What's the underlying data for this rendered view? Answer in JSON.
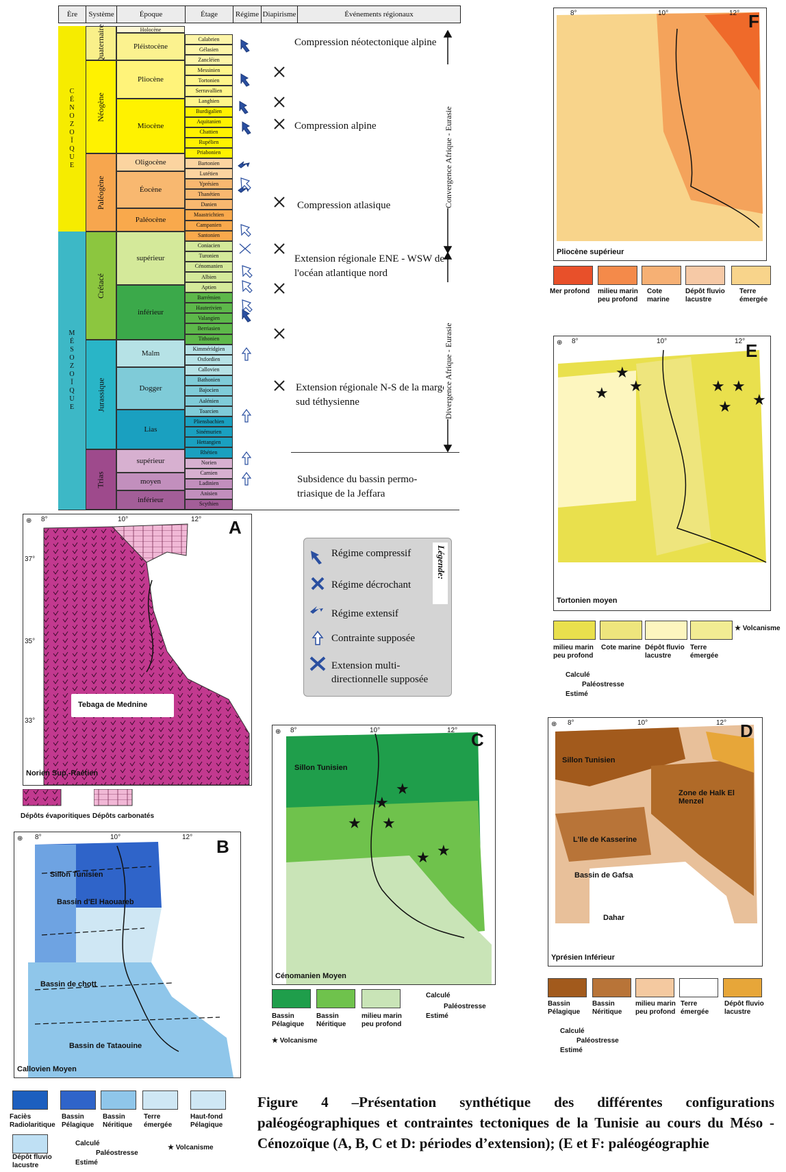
{
  "chart": {
    "headers": [
      "Ère",
      "Système",
      "Époque",
      "Étage",
      "Régime",
      "Diapirisme",
      "Événements régionaux"
    ],
    "eras": {
      "cenozoic": "CÉNOZOÏQUE",
      "mesozoic": "MÉSOZOÏQUE"
    },
    "systems": [
      "Quaternaire",
      "Néogène",
      "Paléogène",
      "Crétacé",
      "Jurassique",
      "Trias"
    ],
    "epochs": [
      "Holocène",
      "Pléistocène",
      "Pliocène",
      "Miocène",
      "Oligocène",
      "Éocène",
      "Paléocène",
      "supérieur",
      "inférieur",
      "Malm",
      "Dogger",
      "Lias",
      "supérieur",
      "moyen",
      "inférieur"
    ],
    "stages": [
      "Calabrien",
      "Gélasien",
      "Zancléien",
      "Messinien",
      "Tortonien",
      "Serravallien",
      "Langhien",
      "Burdigalien",
      "Aquitanien",
      "Chattien",
      "Rupélien",
      "Priabonien",
      "Bartonien",
      "Lutétien",
      "Yprésien",
      "Thanétien",
      "Danien",
      "Maastrichtien",
      "Campanien",
      "Santonien",
      "Coniacien",
      "Turonien",
      "Cénomanien",
      "Albien",
      "Aptien",
      "Barrémien",
      "Hauterivien",
      "Valangien",
      "Berriasien",
      "Tithonien",
      "Kimméridgien",
      "Oxfordien",
      "Callovien",
      "Bathonien",
      "Bajocien",
      "Aalénien",
      "Toarcien",
      "Pliensbachien",
      "Sinémurien",
      "Hettangien",
      "Rhétien",
      "Norien",
      "Carnien",
      "Ladinien",
      "Anisien",
      "Scythien"
    ],
    "events": [
      "Compression néotectonique alpine",
      "Compression alpine",
      "Compression atlasique",
      "Extension régionale ENE - WSW de l'océan atlantique nord",
      "Extension régionale N-S de la marge sud téthysienne",
      "Subsidence du bassin permo-triasique de la Jeffara"
    ],
    "convergence": "Convergence Afrique - Eurasie",
    "divergence": "Divergence Afrique - Eurasie"
  },
  "legend": {
    "title": "Légende:",
    "items": [
      "Régime compressif",
      "Régime décrochant",
      "Régime extensif",
      "Contrainte supposée",
      "Extension multi-directionnelle supposée"
    ]
  },
  "maps": {
    "A": {
      "letter": "A",
      "period": "Norien Sup.-Raétien",
      "place": "Tebaga de Mednine",
      "legend": [
        "Dépôts évaporitiques",
        "Dépôts carbonatés"
      ]
    },
    "B": {
      "letter": "B",
      "period": "Callovien Moyen",
      "places": [
        "Sillon Tunisien",
        "Bassin d'El Haouareb",
        "Bassin de chott",
        "Bassin de Tataouine"
      ],
      "legend": [
        "Faciès Radiolaritique",
        "Bassin Pélagique",
        "Bassin Néritique",
        "Terre émergée",
        "Haut-fond Pélagique",
        "Dépôt fluvio lacustre"
      ]
    },
    "C": {
      "letter": "C",
      "period": "Cénomanien Moyen",
      "places": [
        "Sillon Tunisien"
      ],
      "legend": [
        "Bassin Pélagique",
        "Bassin Néritique",
        "milieu marin peu profond"
      ]
    },
    "D": {
      "letter": "D",
      "period": "Yprésien Inférieur",
      "places": [
        "Sillon Tunisien",
        "Zone de Halk El Menzel",
        "L'Ile de Kasserine",
        "Bassin de Gafsa",
        "Dahar"
      ],
      "legend": [
        "Bassin Pélagique",
        "Bassin Néritique",
        "milieu marin peu profond",
        "Terre émergée",
        "Dépôt fluvio lacustre"
      ]
    },
    "E": {
      "letter": "E",
      "period": "Tortonien moyen",
      "legend": [
        "milieu marin peu profond",
        "Cote marine",
        "Dépôt fluvio lacustre",
        "Terre émergée"
      ],
      "volcanism": "Volcanisme"
    },
    "F": {
      "letter": "F",
      "period": "Pliocène supérieur",
      "legend": [
        "Mer profond",
        "milieu marin peu profond",
        "Cote marine",
        "Dépôt fluvio lacustre",
        "Terre émergée"
      ]
    }
  },
  "paleostress": {
    "computed": "Calculé",
    "label": "Paléostresse",
    "estimated": "Estimé",
    "volcanism": "Volcanisme"
  },
  "grid": {
    "lon": [
      "8°",
      "10°",
      "12°"
    ],
    "lat": [
      "37°",
      "35°",
      "33°"
    ]
  },
  "colors": {
    "neogene": "#fff200",
    "paleogene": "#f7a64e",
    "cretaceous": "#8cc63f",
    "jurassic": "#29b5c7",
    "trias": "#9e4a8c"
  },
  "caption": "Figure 4 –Présentation synthétique des différentes configurations paléogéographiques et contraintes tectoniques de la Tunisie au cours du Méso - Cénozoïque (A, B, C et D: périodes d’extension); (E et F: paléogéographie"
}
